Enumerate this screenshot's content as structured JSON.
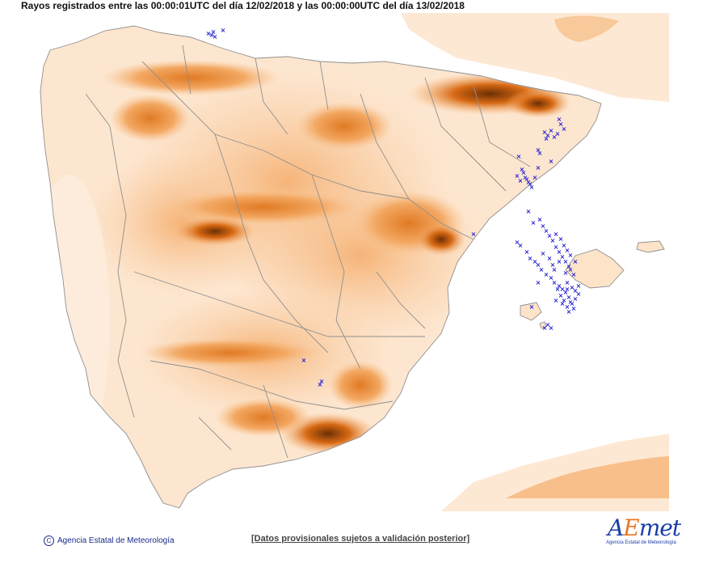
{
  "header": {
    "title": "Rayos registrados entre las 00:00:01UTC del día 12/02/2018 y las 00:00:00UTC del día 13/02/2018"
  },
  "footer": {
    "copyright_symbol": "C",
    "agency": "Agencia Estatal de Meteorología",
    "disclaimer": "[Datos provisionales sujetos a validación posterior]"
  },
  "logo": {
    "word_a": "A",
    "word_e": "E",
    "word_rest": "met",
    "subtitle": "Agencia Estatal de Meteorología"
  },
  "legend_colors": {
    "sea": "#ffffff",
    "lowland": "#fde6cf",
    "mid": "#f7bb84",
    "high": "#ef8b3a",
    "peak": "#7a3505",
    "borders": "#9a9a9a",
    "lightning": "#1a1ad0"
  },
  "lightning_icon": "x-mark-icon"
}
